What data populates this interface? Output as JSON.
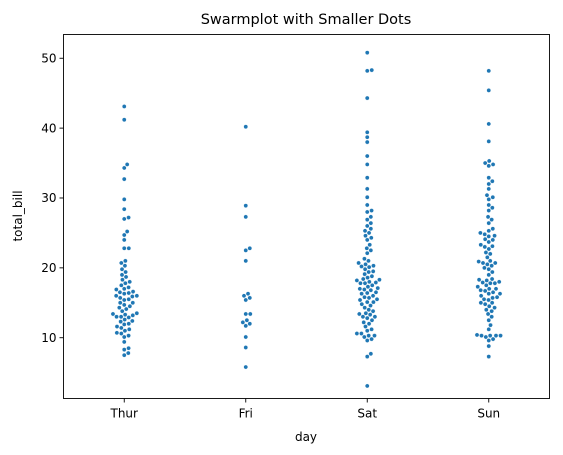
{
  "chart_data": {
    "type": "scatter",
    "style": "swarm",
    "title": "Swarmplot with Smaller Dots",
    "xlabel": "day",
    "ylabel": "total_bill",
    "categories": [
      "Thur",
      "Fri",
      "Sat",
      "Sun"
    ],
    "yticks": [
      10,
      20,
      30,
      40,
      50
    ],
    "ylim": [
      1.3,
      53.4
    ],
    "grid": false,
    "color": "#1f77b4",
    "series": [
      {
        "category": "Thur",
        "values": [
          7.5,
          7.8,
          8.3,
          8.5,
          9.4,
          10.1,
          10.3,
          10.6,
          10.7,
          11.0,
          11.2,
          11.4,
          11.6,
          11.9,
          12.0,
          12.3,
          12.4,
          12.6,
          12.9,
          13.0,
          13.0,
          13.2,
          13.3,
          13.4,
          13.5,
          13.8,
          14.1,
          14.3,
          14.5,
          14.7,
          15.0,
          15.0,
          15.4,
          15.5,
          15.7,
          15.9,
          16.0,
          16.0,
          16.3,
          16.4,
          16.5,
          16.6,
          16.9,
          17.0,
          17.2,
          17.5,
          17.8,
          18.0,
          18.3,
          18.7,
          19.0,
          19.4,
          19.8,
          20.3,
          20.7,
          21.0,
          22.8,
          22.8,
          24.0,
          24.7,
          25.2,
          27.0,
          27.2,
          28.4,
          29.8,
          32.7,
          34.3,
          34.8,
          41.2,
          43.1
        ]
      },
      {
        "category": "Fri",
        "values": [
          5.8,
          8.6,
          10.1,
          11.7,
          12.0,
          12.2,
          12.5,
          13.4,
          13.4,
          15.4,
          15.7,
          16.0,
          16.3,
          21.0,
          22.5,
          22.8,
          27.3,
          28.9,
          40.2
        ]
      },
      {
        "category": "Sat",
        "values": [
          3.1,
          7.3,
          7.7,
          9.6,
          9.8,
          10.1,
          10.3,
          10.3,
          10.6,
          10.6,
          11.0,
          11.2,
          11.6,
          12.0,
          12.2,
          12.5,
          12.8,
          13.0,
          13.0,
          13.3,
          13.4,
          13.5,
          13.8,
          14.0,
          14.3,
          14.6,
          14.8,
          15.1,
          15.1,
          15.4,
          15.5,
          15.7,
          15.8,
          16.0,
          16.3,
          16.4,
          16.5,
          16.8,
          16.9,
          17.0,
          17.1,
          17.3,
          17.5,
          17.8,
          17.8,
          17.9,
          18.0,
          18.2,
          18.3,
          18.4,
          18.6,
          18.8,
          19.1,
          19.4,
          19.5,
          19.8,
          20.1,
          20.2,
          20.3,
          20.5,
          20.7,
          21.0,
          21.3,
          22.1,
          22.5,
          22.8,
          23.3,
          24.0,
          24.3,
          24.6,
          25.0,
          25.3,
          25.6,
          26.0,
          26.4,
          26.9,
          27.3,
          28.0,
          28.2,
          29.0,
          30.1,
          31.3,
          32.9,
          34.8,
          36.0,
          38.0,
          38.7,
          39.4,
          44.3,
          48.2,
          48.3,
          50.8
        ]
      },
      {
        "category": "Sun",
        "values": [
          7.3,
          8.8,
          9.6,
          9.8,
          10.1,
          10.3,
          10.3,
          10.3,
          10.3,
          10.4,
          11.2,
          11.8,
          12.5,
          13.0,
          13.4,
          13.8,
          14.0,
          14.3,
          14.5,
          14.8,
          15.0,
          15.0,
          15.4,
          15.5,
          15.7,
          15.8,
          16.0,
          16.3,
          16.3,
          16.5,
          16.7,
          16.8,
          17.0,
          17.0,
          17.3,
          17.5,
          17.8,
          17.8,
          17.9,
          18.0,
          18.2,
          18.3,
          18.4,
          19.0,
          19.4,
          19.8,
          20.0,
          20.3,
          20.5,
          20.7,
          20.7,
          20.9,
          21.0,
          21.5,
          22.0,
          22.2,
          22.7,
          23.0,
          23.1,
          23.3,
          23.7,
          24.0,
          24.1,
          24.5,
          24.6,
          24.8,
          25.0,
          25.3,
          25.6,
          26.4,
          26.9,
          27.3,
          28.2,
          28.6,
          29.0,
          29.8,
          30.1,
          30.4,
          31.3,
          32.0,
          32.4,
          32.9,
          34.6,
          34.8,
          35.0,
          35.3,
          38.1,
          40.6,
          45.4,
          48.2
        ]
      }
    ]
  }
}
